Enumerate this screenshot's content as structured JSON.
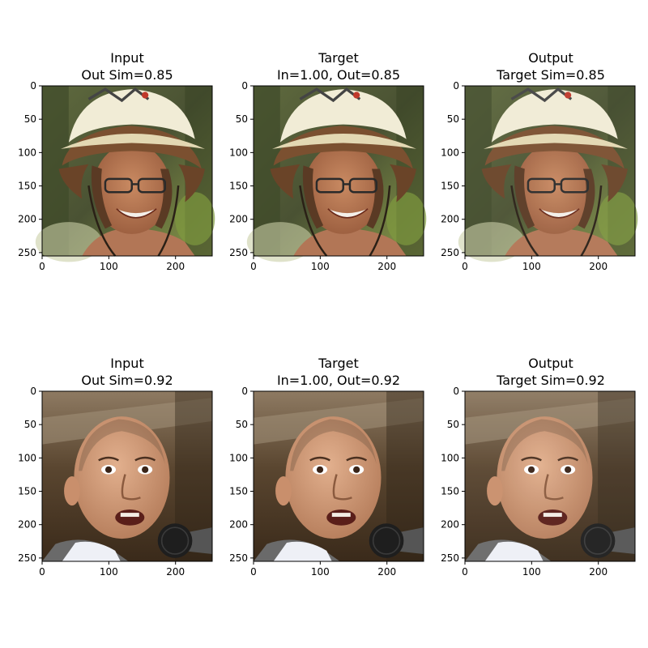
{
  "figure": {
    "rows": [
      {
        "panels": [
          {
            "title": "Input",
            "subtitle": "Out Sim=0.85"
          },
          {
            "title": "Target",
            "subtitle": "In=1.00, Out=0.85"
          },
          {
            "title": "Output",
            "subtitle": "Target Sim=0.85"
          }
        ],
        "image_subject": "face-helmet-woman"
      },
      {
        "panels": [
          {
            "title": "Input",
            "subtitle": "Out Sim=0.92"
          },
          {
            "title": "Target",
            "subtitle": "In=1.00, Out=0.92"
          },
          {
            "title": "Output",
            "subtitle": "Target Sim=0.92"
          }
        ],
        "image_subject": "face-bald-man-microphone"
      }
    ]
  },
  "chart_data": {
    "type": "image-grid",
    "xlim": [
      0,
      255
    ],
    "ylim": [
      255,
      0
    ],
    "xticks": [
      0,
      100,
      200
    ],
    "yticks": [
      0,
      50,
      100,
      150,
      200,
      250
    ],
    "similarities": {
      "row1": {
        "in": 1.0,
        "out": 0.85,
        "target": 0.85
      },
      "row2": {
        "in": 1.0,
        "out": 0.92,
        "target": 0.92
      }
    }
  }
}
